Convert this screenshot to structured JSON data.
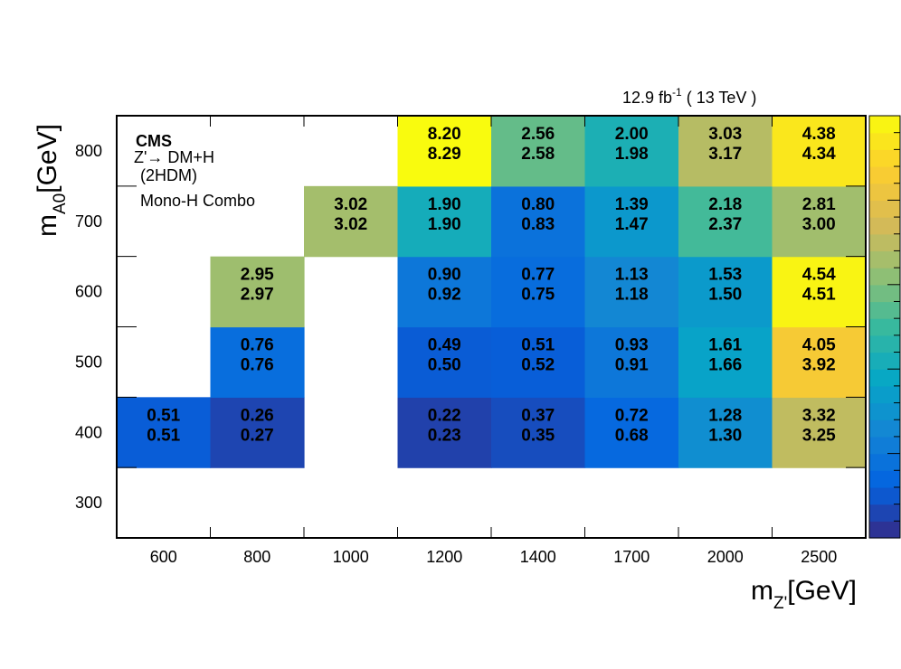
{
  "chart_data": {
    "type": "heatmap",
    "x_categories": [
      "600",
      "800",
      "1000",
      "1200",
      "1400",
      "1700",
      "2000",
      "2500"
    ],
    "y_categories": [
      "300",
      "400",
      "500",
      "600",
      "700",
      "800"
    ],
    "xlabel": "m",
    "xlabel_sub": "Z'",
    "xlabel_unit": "[GeV]",
    "ylabel": "m",
    "ylabel_sub": "A0",
    "ylabel_unit": "[GeV]",
    "lumi_main": "12.9 fb",
    "lumi_exp": "-1",
    "lumi_energy": " ( 13 TeV )",
    "legend_lines": [
      "CMS",
      "Z'→ DM+H",
      "(2HDM)",
      "Mono-H Combo"
    ],
    "colorbar": {
      "min": 0.0,
      "max": 4.6,
      "colors": [
        "#352a87",
        "#0363e1",
        "#1485d4",
        "#06a7c6",
        "#38b99e",
        "#92bf73",
        "#d9ba56",
        "#fcce2e",
        "#f9fb0e"
      ]
    },
    "cells": [
      {
        "x": "600",
        "y": "400",
        "top": "0.51",
        "bottom": "0.51",
        "value": 0.51
      },
      {
        "x": "800",
        "y": "400",
        "top": "0.26",
        "bottom": "0.27",
        "value": 0.27
      },
      {
        "x": "800",
        "y": "500",
        "top": "0.76",
        "bottom": "0.76",
        "value": 0.76
      },
      {
        "x": "800",
        "y": "600",
        "top": "2.95",
        "bottom": "2.97",
        "value": 2.97
      },
      {
        "x": "1000",
        "y": "700",
        "top": "3.02",
        "bottom": "3.02",
        "value": 3.02
      },
      {
        "x": "1200",
        "y": "400",
        "top": "0.22",
        "bottom": "0.23",
        "value": 0.23
      },
      {
        "x": "1200",
        "y": "500",
        "top": "0.49",
        "bottom": "0.50",
        "value": 0.5
      },
      {
        "x": "1200",
        "y": "600",
        "top": "0.90",
        "bottom": "0.92",
        "value": 0.92
      },
      {
        "x": "1200",
        "y": "700",
        "top": "1.90",
        "bottom": "1.90",
        "value": 1.9
      },
      {
        "x": "1200",
        "y": "800",
        "top": "8.20",
        "bottom": "8.29",
        "value": 8.29
      },
      {
        "x": "1400",
        "y": "400",
        "top": "0.37",
        "bottom": "0.35",
        "value": 0.35
      },
      {
        "x": "1400",
        "y": "500",
        "top": "0.51",
        "bottom": "0.52",
        "value": 0.52
      },
      {
        "x": "1400",
        "y": "600",
        "top": "0.77",
        "bottom": "0.75",
        "value": 0.75
      },
      {
        "x": "1400",
        "y": "700",
        "top": "0.80",
        "bottom": "0.83",
        "value": 0.83
      },
      {
        "x": "1400",
        "y": "800",
        "top": "2.56",
        "bottom": "2.58",
        "value": 2.58
      },
      {
        "x": "1700",
        "y": "400",
        "top": "0.72",
        "bottom": "0.68",
        "value": 0.68
      },
      {
        "x": "1700",
        "y": "500",
        "top": "0.93",
        "bottom": "0.91",
        "value": 0.91
      },
      {
        "x": "1700",
        "y": "600",
        "top": "1.13",
        "bottom": "1.18",
        "value": 1.18
      },
      {
        "x": "1700",
        "y": "700",
        "top": "1.39",
        "bottom": "1.47",
        "value": 1.47
      },
      {
        "x": "1700",
        "y": "800",
        "top": "2.00",
        "bottom": "1.98",
        "value": 1.98
      },
      {
        "x": "2000",
        "y": "400",
        "top": "1.28",
        "bottom": "1.30",
        "value": 1.3
      },
      {
        "x": "2000",
        "y": "500",
        "top": "1.61",
        "bottom": "1.66",
        "value": 1.66
      },
      {
        "x": "2000",
        "y": "600",
        "top": "1.53",
        "bottom": "1.50",
        "value": 1.5
      },
      {
        "x": "2000",
        "y": "700",
        "top": "2.18",
        "bottom": "2.37",
        "value": 2.37
      },
      {
        "x": "2000",
        "y": "800",
        "top": "3.03",
        "bottom": "3.17",
        "value": 3.17
      },
      {
        "x": "2500",
        "y": "400",
        "top": "3.32",
        "bottom": "3.25",
        "value": 3.25
      },
      {
        "x": "2500",
        "y": "500",
        "top": "4.05",
        "bottom": "3.92",
        "value": 3.92
      },
      {
        "x": "2500",
        "y": "600",
        "top": "4.54",
        "bottom": "4.51",
        "value": 4.51
      },
      {
        "x": "2500",
        "y": "700",
        "top": "2.81",
        "bottom": "3.00",
        "value": 3.0
      },
      {
        "x": "2500",
        "y": "800",
        "top": "4.38",
        "bottom": "4.34",
        "value": 4.34
      }
    ]
  }
}
